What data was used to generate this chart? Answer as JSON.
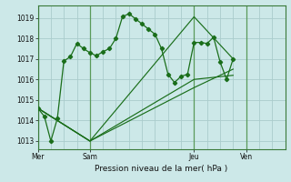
{
  "background_color": "#cce8e8",
  "grid_color": "#aacccc",
  "line_color": "#1a6e1a",
  "title": "Pression niveau de la mer( hPa )",
  "ylabel_ticks": [
    1013,
    1014,
    1015,
    1016,
    1017,
    1018,
    1019
  ],
  "ylim": [
    1012.6,
    1019.6
  ],
  "day_labels": [
    "Mer",
    "Sam",
    "Jeu",
    "Ven"
  ],
  "day_positions": [
    0,
    8,
    24,
    32
  ],
  "xlim": [
    0,
    38
  ],
  "series1_x": [
    0,
    1,
    2,
    3,
    4,
    5,
    6,
    7,
    8,
    9,
    10,
    11,
    12,
    13,
    14,
    15,
    16,
    17,
    18,
    19,
    20,
    21,
    22,
    23,
    24,
    25,
    26,
    27,
    28,
    29,
    30
  ],
  "series1_y": [
    1014.6,
    1014.2,
    1013.0,
    1014.1,
    1016.9,
    1017.1,
    1017.75,
    1017.5,
    1017.3,
    1017.15,
    1017.35,
    1017.5,
    1018.0,
    1019.05,
    1019.2,
    1018.95,
    1018.7,
    1018.45,
    1018.2,
    1017.5,
    1016.25,
    1015.85,
    1016.15,
    1016.25,
    1017.8,
    1017.8,
    1017.75,
    1018.05,
    1016.85,
    1016.0,
    1017.0
  ],
  "series2_x": [
    0,
    8,
    24,
    30
  ],
  "series2_y": [
    1014.6,
    1013.0,
    1019.05,
    1017.0
  ],
  "series3_x": [
    0,
    8,
    24,
    30
  ],
  "series3_y": [
    1014.6,
    1013.0,
    1015.6,
    1016.5
  ],
  "series4_x": [
    0,
    8,
    24,
    30
  ],
  "series4_y": [
    1014.6,
    1013.0,
    1016.0,
    1016.2
  ],
  "vgrid_step": 2
}
